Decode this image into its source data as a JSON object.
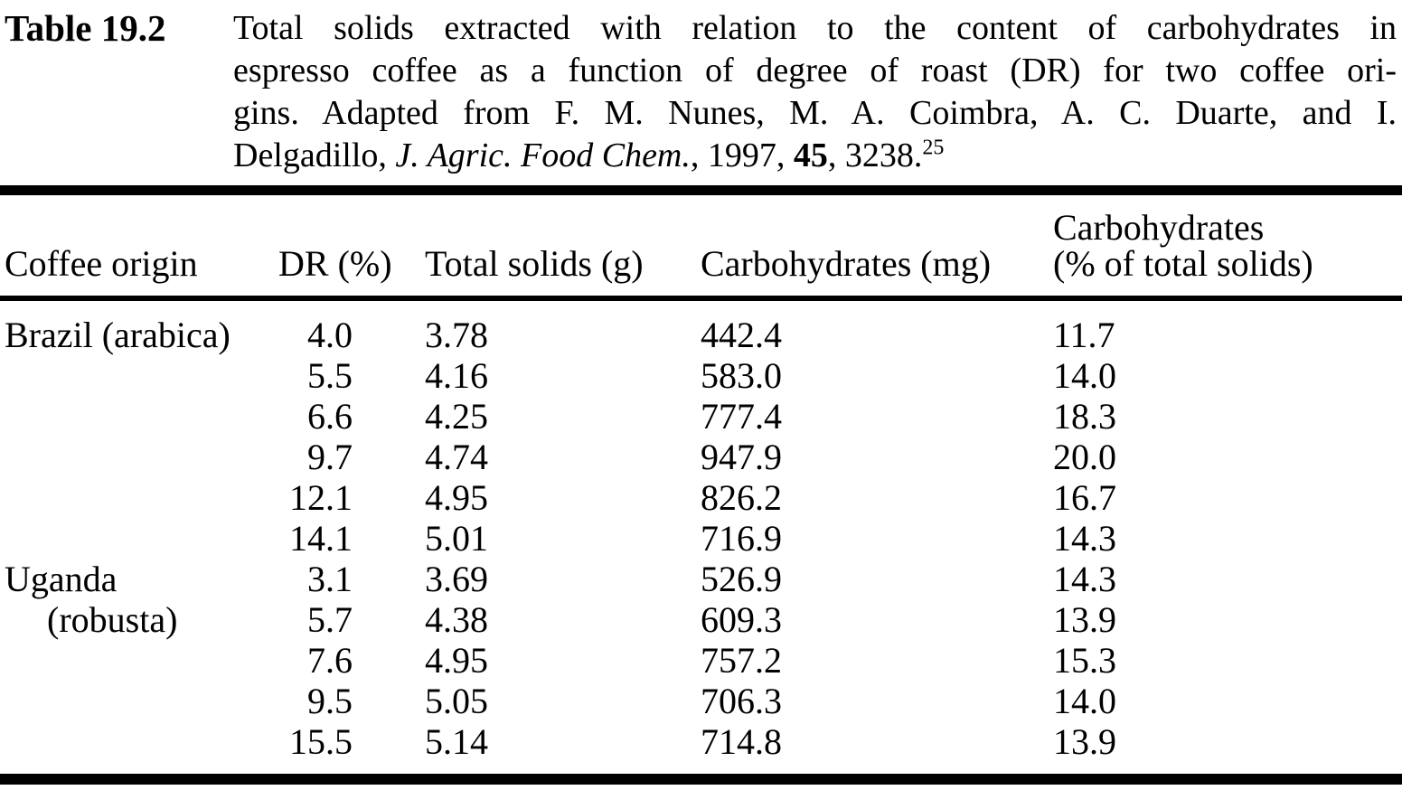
{
  "caption": {
    "label": "Table 19.2",
    "line1": "Total solids extracted with relation to the content of carbohydrates in",
    "line2": "espresso coffee as a function of degree of roast (DR) for two coffee ori-",
    "line3": "gins. Adapted from F. M. Nunes, M. A. Coimbra, A. C. Duarte, and I.",
    "line4_prefix": "Delgadillo, ",
    "journal": "J. Agric. Food Chem.",
    "line4_mid": ", 1997, ",
    "volume": "45",
    "line4_suffix": ", 3238.",
    "footnote_ref": "25"
  },
  "table": {
    "columns": [
      {
        "label": "Coffee origin"
      },
      {
        "label": "DR (%)"
      },
      {
        "label": "Total solids (g)"
      },
      {
        "label": "Carbohydrates (mg)"
      },
      {
        "line1": "Carbohydrates",
        "line2": "(% of total solids)"
      }
    ],
    "rows": [
      {
        "origin": "Brazil (arabica)",
        "dr": "4.0",
        "total_solids": "3.78",
        "carbs_mg": "442.4",
        "carbs_pct": "11.7"
      },
      {
        "origin": "",
        "dr": "5.5",
        "total_solids": "4.16",
        "carbs_mg": "583.0",
        "carbs_pct": "14.0"
      },
      {
        "origin": "",
        "dr": "6.6",
        "total_solids": "4.25",
        "carbs_mg": "777.4",
        "carbs_pct": "18.3"
      },
      {
        "origin": "",
        "dr": "9.7",
        "total_solids": "4.74",
        "carbs_mg": "947.9",
        "carbs_pct": "20.0"
      },
      {
        "origin": "",
        "dr": "12.1",
        "total_solids": "4.95",
        "carbs_mg": "826.2",
        "carbs_pct": "16.7"
      },
      {
        "origin": "",
        "dr": "14.1",
        "total_solids": "5.01",
        "carbs_mg": "716.9",
        "carbs_pct": "14.3"
      },
      {
        "origin": "Uganda",
        "dr": "3.1",
        "total_solids": "3.69",
        "carbs_mg": "526.9",
        "carbs_pct": "14.3"
      },
      {
        "origin": "(robusta)",
        "dr": "5.7",
        "total_solids": "4.38",
        "carbs_mg": "609.3",
        "carbs_pct": "13.9"
      },
      {
        "origin": "",
        "dr": "7.6",
        "total_solids": "4.95",
        "carbs_mg": "757.2",
        "carbs_pct": "15.3"
      },
      {
        "origin": "",
        "dr": "9.5",
        "total_solids": "5.05",
        "carbs_mg": "706.3",
        "carbs_pct": "14.0"
      },
      {
        "origin": "",
        "dr": "15.5",
        "total_solids": "5.14",
        "carbs_mg": "714.8",
        "carbs_pct": "13.9"
      }
    ]
  },
  "colors": {
    "text": "#000000",
    "background": "#ffffff",
    "rule": "#000000"
  }
}
